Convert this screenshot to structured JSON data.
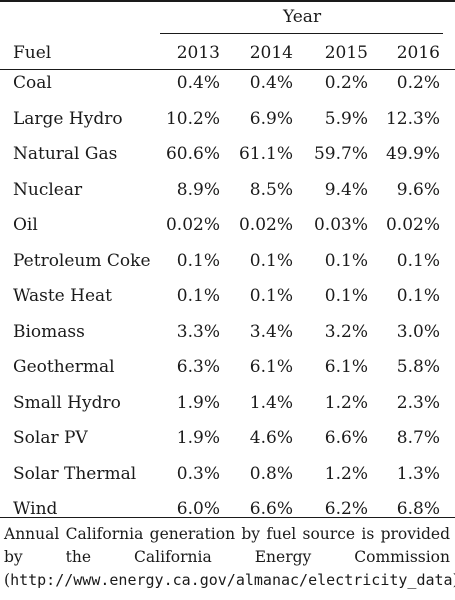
{
  "header": {
    "year_group": "Year",
    "fuel_col": "Fuel",
    "years": [
      "2013",
      "2014",
      "2015",
      "2016"
    ]
  },
  "rows": [
    {
      "fuel": "Coal",
      "values": [
        "0.4%",
        "0.4%",
        "0.2%",
        "0.2%"
      ]
    },
    {
      "fuel": "Large Hydro",
      "values": [
        "10.2%",
        "6.9%",
        "5.9%",
        "12.3%"
      ]
    },
    {
      "fuel": "Natural Gas",
      "values": [
        "60.6%",
        "61.1%",
        "59.7%",
        "49.9%"
      ]
    },
    {
      "fuel": "Nuclear",
      "values": [
        "8.9%",
        "8.5%",
        "9.4%",
        "9.6%"
      ]
    },
    {
      "fuel": "Oil",
      "values": [
        "0.02%",
        "0.02%",
        "0.03%",
        "0.02%"
      ]
    },
    {
      "fuel": "Petroleum Coke",
      "values": [
        "0.1%",
        "0.1%",
        "0.1%",
        "0.1%"
      ]
    },
    {
      "fuel": "Waste Heat",
      "values": [
        "0.1%",
        "0.1%",
        "0.1%",
        "0.1%"
      ]
    },
    {
      "fuel": "Biomass",
      "values": [
        "3.3%",
        "3.4%",
        "3.2%",
        "3.0%"
      ]
    },
    {
      "fuel": "Geothermal",
      "values": [
        "6.3%",
        "6.1%",
        "6.1%",
        "5.8%"
      ]
    },
    {
      "fuel": "Small Hydro",
      "values": [
        "1.9%",
        "1.4%",
        "1.2%",
        "2.3%"
      ]
    },
    {
      "fuel": "Solar PV",
      "values": [
        "1.9%",
        "4.6%",
        "6.6%",
        "8.7%"
      ]
    },
    {
      "fuel": "Solar Thermal",
      "values": [
        "0.3%",
        "0.8%",
        "1.2%",
        "1.3%"
      ]
    },
    {
      "fuel": "Wind",
      "values": [
        "6.0%",
        "6.6%",
        "6.2%",
        "6.8%"
      ]
    }
  ],
  "caption": {
    "text": "Annual California generation by fuel source is provided by the California Energy Commission (",
    "url": "http://www.energy.ca.gov/almanac/electricity_data",
    "end": ")."
  }
}
